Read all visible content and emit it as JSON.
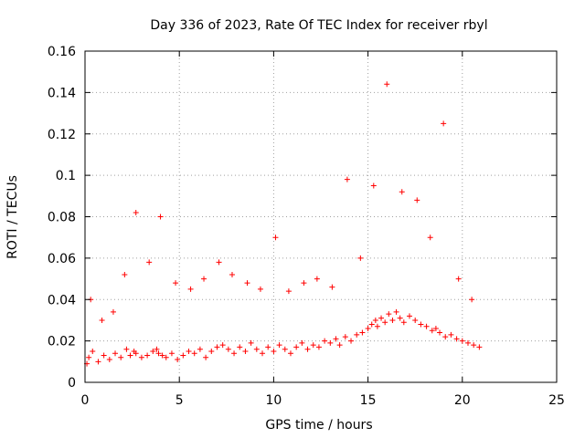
{
  "chart_data": {
    "type": "scatter",
    "title": "Day 336 of 2023, Rate Of TEC Index for receiver rbyl",
    "xlabel": "GPS time / hours",
    "ylabel": "ROTI / TECUs",
    "xlim": [
      0,
      25
    ],
    "ylim": [
      0,
      0.16
    ],
    "xticks": [
      "0",
      "5",
      "10",
      "15",
      "20",
      "25"
    ],
    "yticks": [
      "0",
      "0.02",
      "0.04",
      "0.06",
      "0.08",
      "0.1",
      "0.12",
      "0.14",
      "0.16"
    ],
    "grid": true,
    "marker": "plus",
    "color": "#ff0000",
    "series": [
      {
        "x": [
          0.1,
          0.2,
          0.4,
          0.7,
          1.0,
          1.3,
          1.6,
          1.9,
          2.2,
          2.4,
          2.6,
          2.7,
          3.0,
          3.3,
          3.6,
          3.8,
          3.9,
          4.1,
          4.3,
          4.6,
          4.9,
          5.2,
          5.5,
          5.8,
          6.1,
          6.4,
          6.7,
          7.0,
          7.3,
          7.6,
          7.9,
          8.2,
          8.5,
          8.8,
          9.1,
          9.4,
          9.7,
          10.0,
          10.3,
          10.6,
          10.9,
          11.2,
          11.5,
          11.8,
          12.1,
          12.4,
          12.7,
          13.0,
          13.3,
          13.5,
          13.8,
          14.1,
          14.4,
          14.7,
          15.0,
          15.2,
          15.4,
          15.5,
          15.7,
          15.9,
          16.1,
          16.3,
          16.5,
          16.7,
          16.9,
          17.2,
          17.5,
          17.8,
          18.1,
          18.4,
          18.6,
          18.8,
          19.1,
          19.4,
          19.7,
          20.0,
          20.3,
          20.6,
          20.9,
          0.3,
          0.9,
          1.5,
          2.1,
          2.7,
          3.4,
          4.0,
          4.8,
          5.6,
          6.3,
          7.1,
          7.8,
          8.6,
          9.3,
          10.1,
          10.8,
          11.6,
          12.3,
          13.1,
          13.9,
          14.6,
          15.3,
          16.0,
          16.8,
          17.6,
          18.3,
          19.0,
          19.8,
          20.5
        ],
        "y": [
          0.009,
          0.012,
          0.015,
          0.01,
          0.013,
          0.011,
          0.014,
          0.012,
          0.016,
          0.013,
          0.015,
          0.014,
          0.012,
          0.013,
          0.015,
          0.016,
          0.014,
          0.013,
          0.012,
          0.014,
          0.011,
          0.013,
          0.015,
          0.014,
          0.016,
          0.012,
          0.015,
          0.017,
          0.018,
          0.016,
          0.014,
          0.017,
          0.015,
          0.019,
          0.016,
          0.014,
          0.017,
          0.015,
          0.018,
          0.016,
          0.014,
          0.017,
          0.019,
          0.016,
          0.018,
          0.017,
          0.02,
          0.019,
          0.021,
          0.018,
          0.022,
          0.02,
          0.023,
          0.024,
          0.026,
          0.028,
          0.03,
          0.027,
          0.031,
          0.029,
          0.033,
          0.03,
          0.034,
          0.031,
          0.029,
          0.032,
          0.03,
          0.028,
          0.027,
          0.025,
          0.026,
          0.024,
          0.022,
          0.023,
          0.021,
          0.02,
          0.019,
          0.018,
          0.017,
          0.04,
          0.03,
          0.034,
          0.052,
          0.082,
          0.058,
          0.08,
          0.048,
          0.045,
          0.05,
          0.058,
          0.052,
          0.048,
          0.045,
          0.07,
          0.044,
          0.048,
          0.05,
          0.046,
          0.098,
          0.06,
          0.095,
          0.144,
          0.092,
          0.088,
          0.07,
          0.125,
          0.05,
          0.04
        ]
      }
    ]
  }
}
